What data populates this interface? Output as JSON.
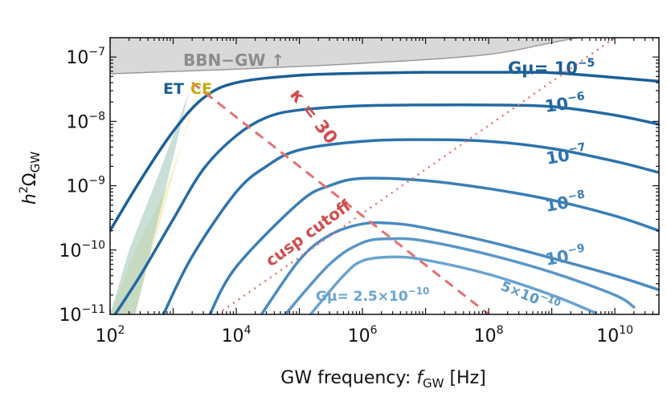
{
  "chart_data": {
    "type": "line",
    "x_scale": "log",
    "y_scale": "log",
    "xlim": [
      100,
      50000000000
    ],
    "ylim": [
      1e-11,
      2e-07
    ],
    "xlabel": "GW frequency: f_GW [Hz]",
    "xlabel_parts": {
      "main": "GW frequency: ",
      "var": "f",
      "sub": "GW",
      "unit": " [Hz]"
    },
    "ylabel_parts": {
      "h": "h",
      "sq": "2",
      "omega": "Ω",
      "sub": "GW"
    },
    "x_ticks": [
      {
        "value": 100,
        "base": "10",
        "exp": "2"
      },
      {
        "value": 10000,
        "base": "10",
        "exp": "4"
      },
      {
        "value": 1000000,
        "base": "10",
        "exp": "6"
      },
      {
        "value": 100000000,
        "base": "10",
        "exp": "8"
      },
      {
        "value": 10000000000,
        "base": "10",
        "exp": "10"
      }
    ],
    "y_ticks": [
      {
        "value": 1e-07,
        "base": "10",
        "exp": "−7"
      },
      {
        "value": 1e-08,
        "base": "10",
        "exp": "−8"
      },
      {
        "value": 1e-09,
        "base": "10",
        "exp": "−9"
      },
      {
        "value": 1e-10,
        "base": "10",
        "exp": "−10"
      },
      {
        "value": 1e-11,
        "base": "10",
        "exp": "−11"
      }
    ],
    "series": [
      {
        "name": "Gμ= 10^-5",
        "color": "#1b5f96",
        "x": [
          100,
          300,
          1000,
          3000,
          10000,
          100000,
          1000000,
          10000000,
          100000000,
          1000000000,
          10000000000,
          50000000000
        ],
        "y": [
          2e-10,
          1.2e-09,
          7e-09,
          2.3e-08,
          4e-08,
          5.2e-08,
          5.6e-08,
          5.8e-08,
          5.8e-08,
          5.7e-08,
          4.8e-08,
          4.2e-08
        ]
      },
      {
        "name": "10^-6",
        "color": "#2469a3",
        "x": [
          120,
          300,
          1000,
          3000,
          10000,
          30000,
          100000,
          1000000,
          10000000,
          100000000,
          1000000000,
          10000000000,
          50000000000
        ],
        "y": [
          1e-11,
          4e-11,
          3e-10,
          1.8e-09,
          6e-09,
          1.15e-08,
          1.5e-08,
          1.75e-08,
          1.8e-08,
          1.8e-08,
          1.7e-08,
          1.25e-08,
          9e-09
        ]
      },
      {
        "name": "10^-7",
        "color": "#2c73ad",
        "x": [
          700,
          2000,
          10000,
          30000,
          100000,
          1000000,
          10000000,
          100000000,
          1000000000,
          10000000000,
          50000000000
        ],
        "y": [
          1e-11,
          8e-11,
          8e-10,
          2e-09,
          3.6e-09,
          4.9e-09,
          5.2e-09,
          4.9e-09,
          3.8e-09,
          2.4e-09,
          1.6e-09
        ]
      },
      {
        "name": "10^-8",
        "color": "#3a7fb6",
        "x": [
          3800,
          10000,
          100000,
          300000,
          1000000,
          10000000,
          100000000,
          1000000000,
          10000000000,
          50000000000
        ],
        "y": [
          1e-11,
          5.5e-11,
          5.5e-10,
          1e-09,
          1.3e-09,
          1.2e-09,
          9e-10,
          6e-10,
          3.4e-10,
          2e-10
        ]
      },
      {
        "name": "10^-9",
        "color": "#4a8bc0",
        "x": [
          25000,
          100000,
          300000,
          1000000,
          3000000,
          10000000,
          100000000,
          1000000000,
          10000000000,
          50000000000
        ],
        "y": [
          1e-11,
          7e-11,
          1.7e-10,
          2.55e-10,
          2.6e-10,
          2.2e-10,
          1.35e-10,
          7.5e-11,
          4e-11,
          2.4e-11
        ]
      },
      {
        "name": "5×10^-10",
        "color": "#5a97c8",
        "x": [
          60000,
          300000,
          1000000,
          3000000,
          10000000,
          100000000,
          1000000000,
          10000000000,
          20000000000
        ],
        "y": [
          1e-11,
          6e-11,
          1.3e-10,
          1.5e-10,
          1.38e-10,
          8.5e-11,
          4.5e-11,
          2e-11,
          1.3e-11
        ]
      },
      {
        "name": "Gμ= 2.5×10^-10",
        "color": "#6aa3cf",
        "x": [
          150000,
          500000,
          1000000,
          3000000,
          10000000,
          100000000,
          1000000000,
          5000000000
        ],
        "y": [
          1e-11,
          4e-11,
          6.8e-11,
          7.8e-11,
          7e-11,
          4.2e-11,
          2e-11,
          1.05e-11
        ]
      }
    ],
    "kappa_line": {
      "x": [
        2000,
        100000000
      ],
      "y": [
        4e-08,
        1e-11
      ]
    },
    "cusp_cutoff_line": {
      "x": [
        5000,
        10000000000
      ],
      "y": [
        1e-11,
        2e-07
      ]
    },
    "bbn_curve": {
      "x": [
        100,
        10000,
        1000000,
        100000000,
        3000000000,
        50000000000
      ],
      "y": [
        5.5e-08,
        6.5e-08,
        8e-08,
        1.1e-07,
        2e-07,
        2e-07
      ]
    },
    "et_region": {
      "x": [
        100,
        200,
        500,
        1000,
        1800,
        250,
        100
      ],
      "y": [
        1e-11,
        1e-10,
        1e-09,
        6e-09,
        3e-08,
        1e-11,
        1e-11
      ]
    },
    "ce_region": {
      "x": [
        100,
        250,
        800,
        1800,
        2500,
        250,
        100
      ],
      "y": [
        1e-11,
        1e-10,
        1e-09,
        1e-08,
        4e-08,
        1e-11,
        1e-11
      ]
    },
    "colors": {
      "bbn_fill": "#d9d9d9",
      "bbn_line": "#9a9a9a",
      "bbn_text": "#8c8c8c",
      "et_fill": "#9dc7b8",
      "ce_fill": "#f2efc0",
      "et_text": "#1b5f96",
      "ce_text": "#c8a80a",
      "red": "#d24c4c",
      "red_light": "#e57070"
    }
  },
  "labels": {
    "bbn": "BBN−GW ↑",
    "et": "ET",
    "ce": "CE",
    "kappa": "κ = 30",
    "cusp": "cusp cutoff",
    "s1_prefix": "Gμ= 10",
    "s1_exp": "−5",
    "s2_base": "10",
    "s2_exp": "−6",
    "s3_base": "10",
    "s3_exp": "−7",
    "s4_base": "10",
    "s4_exp": "−8",
    "s5_base": "10",
    "s5_exp": "−9",
    "s6_prefix": "5×10",
    "s6_exp": "−10",
    "s7_prefix": "Gμ= 2.5×10",
    "s7_exp": "−10"
  }
}
